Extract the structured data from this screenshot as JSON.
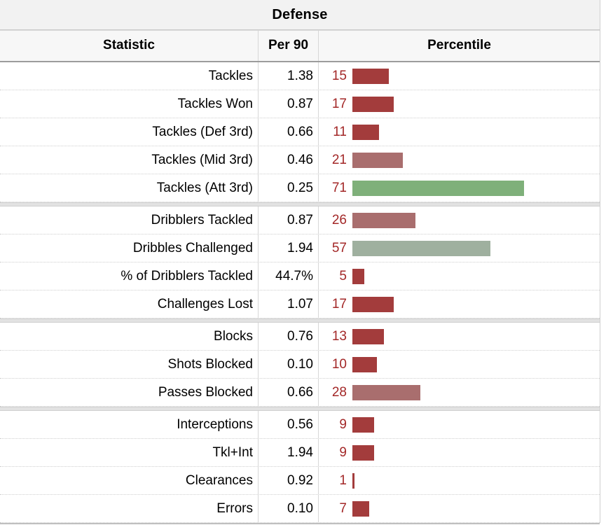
{
  "caption": "Defense",
  "headers": {
    "statistic": "Statistic",
    "per90": "Per 90",
    "percentile": "Percentile"
  },
  "colors": {
    "low": "#a33c3c",
    "mid_low": "#a96e6e",
    "mid": "#9fb09f",
    "high": "#7fb07a"
  },
  "groups": [
    [
      {
        "stat": "Tackles",
        "per90": "1.38",
        "pct": 15
      },
      {
        "stat": "Tackles Won",
        "per90": "0.87",
        "pct": 17
      },
      {
        "stat": "Tackles (Def 3rd)",
        "per90": "0.66",
        "pct": 11
      },
      {
        "stat": "Tackles (Mid 3rd)",
        "per90": "0.46",
        "pct": 21
      },
      {
        "stat": "Tackles (Att 3rd)",
        "per90": "0.25",
        "pct": 71
      }
    ],
    [
      {
        "stat": "Dribblers Tackled",
        "per90": "0.87",
        "pct": 26
      },
      {
        "stat": "Dribbles Challenged",
        "per90": "1.94",
        "pct": 57
      },
      {
        "stat": "% of Dribblers Tackled",
        "per90": "44.7%",
        "pct": 5
      },
      {
        "stat": "Challenges Lost",
        "per90": "1.07",
        "pct": 17
      }
    ],
    [
      {
        "stat": "Blocks",
        "per90": "0.76",
        "pct": 13
      },
      {
        "stat": "Shots Blocked",
        "per90": "0.10",
        "pct": 10
      },
      {
        "stat": "Passes Blocked",
        "per90": "0.66",
        "pct": 28
      }
    ],
    [
      {
        "stat": "Interceptions",
        "per90": "0.56",
        "pct": 9
      },
      {
        "stat": "Tkl+Int",
        "per90": "1.94",
        "pct": 9
      },
      {
        "stat": "Clearances",
        "per90": "0.92",
        "pct": 1
      },
      {
        "stat": "Errors",
        "per90": "0.10",
        "pct": 7
      }
    ]
  ]
}
